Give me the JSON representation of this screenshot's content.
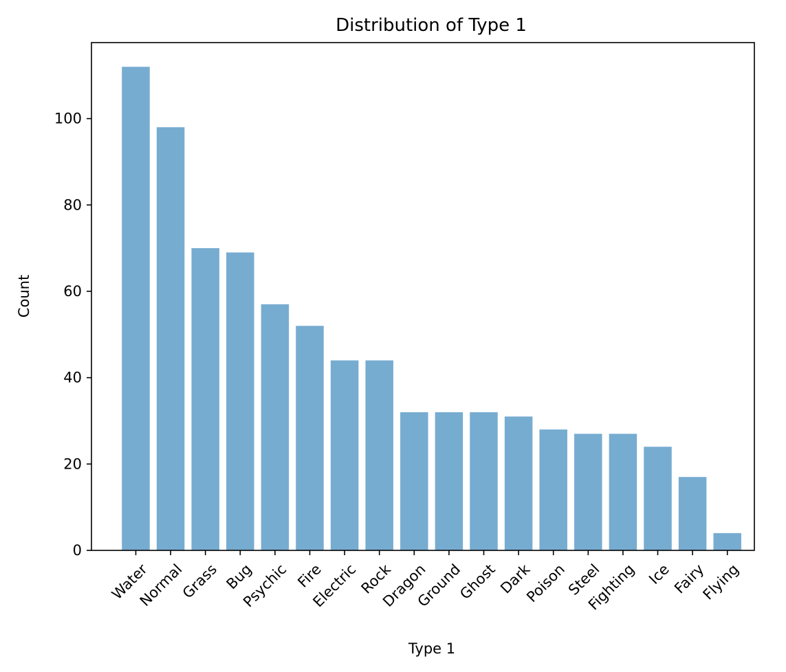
{
  "chart_data": {
    "type": "bar",
    "title": "Distribution of Type 1",
    "xlabel": "Type 1",
    "ylabel": "Count",
    "categories": [
      "Water",
      "Normal",
      "Grass",
      "Bug",
      "Psychic",
      "Fire",
      "Electric",
      "Rock",
      "Dragon",
      "Ground",
      "Ghost",
      "Dark",
      "Poison",
      "Steel",
      "Fighting",
      "Ice",
      "Fairy",
      "Flying"
    ],
    "values": [
      112,
      98,
      70,
      69,
      57,
      52,
      44,
      44,
      32,
      32,
      32,
      31,
      28,
      27,
      27,
      24,
      17,
      4
    ],
    "ylim": [
      0,
      117.6
    ],
    "yticks": [
      0,
      20,
      40,
      60,
      80,
      100
    ],
    "bar_color": "#77acd1",
    "grid": false,
    "legend": "none"
  }
}
